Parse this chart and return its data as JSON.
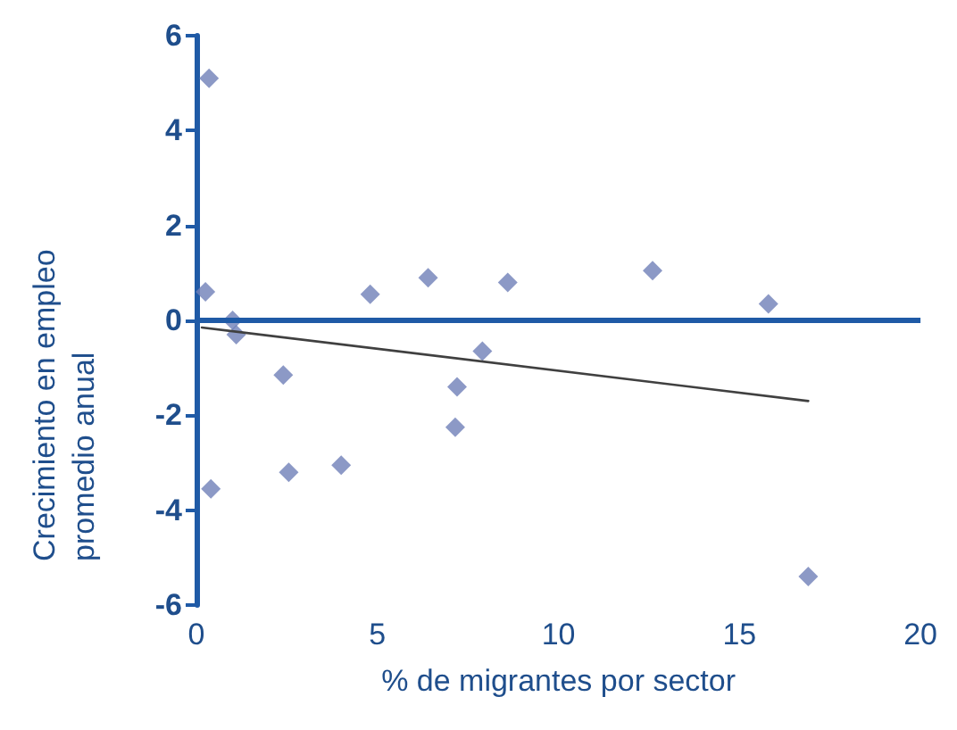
{
  "chart_data": {
    "type": "scatter",
    "xlabel": "% de migrantes por sector",
    "ylabel": "Crecimiento en empleo promedio anual",
    "xlim": [
      0,
      20
    ],
    "xticks": [
      0,
      5,
      10,
      15,
      20
    ],
    "ylim": [
      -6,
      6
    ],
    "yticks": [
      -6,
      -4,
      -2,
      0,
      2,
      4,
      6
    ],
    "grid": false,
    "marker": "diamond",
    "ref_lines": [
      {
        "axis": "y",
        "value": 0,
        "color": "#1f5aa6"
      }
    ],
    "series": [
      {
        "color": "#6f7fb8",
        "x": [
          0.35,
          0.25,
          1.0,
          1.1,
          0.4,
          2.4,
          2.55,
          4.0,
          4.8,
          6.4,
          7.2,
          7.15,
          7.9,
          8.6,
          12.6,
          15.8,
          16.9
        ],
        "values": [
          5.1,
          0.6,
          0.0,
          -0.3,
          -3.55,
          -1.15,
          -3.2,
          -3.05,
          0.55,
          0.9,
          -1.4,
          -2.25,
          -0.65,
          0.8,
          1.05,
          0.35,
          -5.4
        ]
      },
      {
        "type": "line",
        "color": "#404040",
        "marker": "none",
        "x": [
          0.15,
          16.9
        ],
        "values": [
          -0.15,
          -1.7
        ]
      }
    ]
  }
}
